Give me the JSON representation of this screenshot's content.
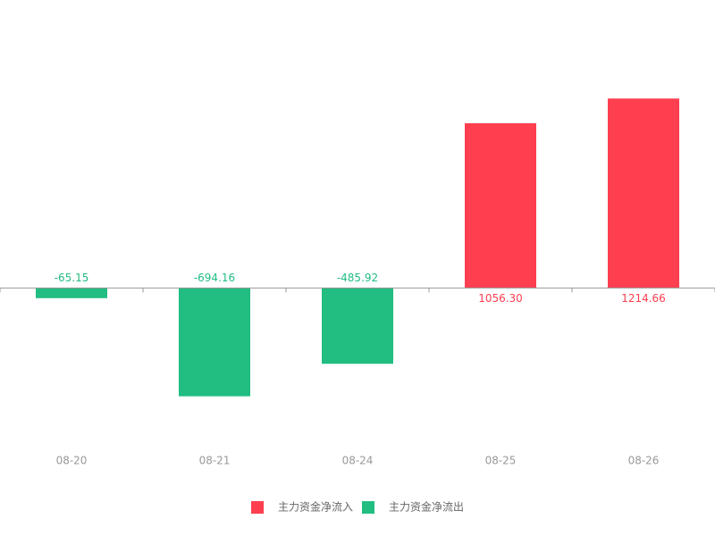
{
  "chart_data": {
    "type": "bar",
    "categories": [
      "08-20",
      "08-21",
      "08-24",
      "08-25",
      "08-26"
    ],
    "series": [
      {
        "name": "主力资金净流入",
        "color": "#fd3f4f",
        "values": [
          null,
          null,
          null,
          1056.3,
          1214.66
        ],
        "value_labels": [
          null,
          null,
          null,
          "1056.30",
          "1214.66"
        ]
      },
      {
        "name": "主力资金净流出",
        "color": "#21bd81",
        "values": [
          -65.15,
          -694.16,
          -485.92,
          null,
          null
        ],
        "value_labels": [
          "-65.15",
          "-694.16",
          "-485.92",
          null,
          null
        ]
      }
    ],
    "ylim": [
      -1000,
      1600
    ]
  }
}
